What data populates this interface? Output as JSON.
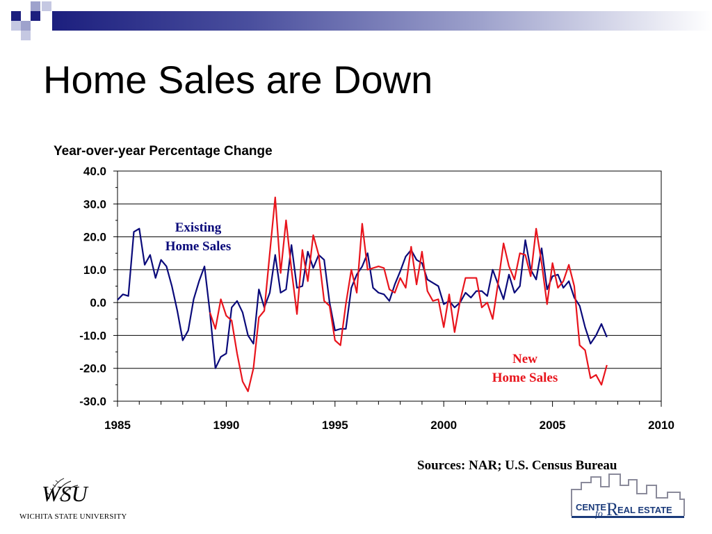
{
  "slide": {
    "title": "Home Sales are Down",
    "sources": "Sources:  NAR; U.S. Census Bureau"
  },
  "colors": {
    "deco_dark": "#1c1f7e",
    "deco_light": "#9ea2cc",
    "existing_series": "#0a0a7a",
    "new_series": "#e8141c",
    "gridline": "#000000"
  },
  "logos": {
    "wsu": {
      "mark": "WSU",
      "name": "WICHITA STATE UNIVERSITY"
    },
    "cre": {
      "word1": "CENTE",
      "word2": "fo",
      "word3": "R",
      "word4": "EAL ESTATE"
    }
  },
  "chart_data": {
    "type": "line",
    "title": "Year-over-year Percentage Change",
    "xlabel": "",
    "ylabel": "",
    "xlim": [
      1985,
      2010
    ],
    "ylim": [
      -30,
      40
    ],
    "x_ticks": [
      "1985",
      "1990",
      "1995",
      "2000",
      "2005",
      "2010"
    ],
    "y_ticks": [
      "40.0",
      "30.0",
      "20.0",
      "10.0",
      "0.0",
      "-10.0",
      "-20.0",
      "-30.0"
    ],
    "grid": "horizontal",
    "annotations": [
      {
        "series": "Existing",
        "lines": [
          "Existing",
          "Home Sales"
        ]
      },
      {
        "series": "New",
        "lines": [
          "New",
          "Home Sales"
        ]
      }
    ],
    "series": [
      {
        "name": "Existing Home Sales",
        "color": "#0a0a7a",
        "points": [
          [
            1985.0,
            0.8
          ],
          [
            1985.25,
            2.5
          ],
          [
            1985.5,
            2.0
          ],
          [
            1985.75,
            21.5
          ],
          [
            1986.0,
            22.5
          ],
          [
            1986.25,
            11.5
          ],
          [
            1986.5,
            14.5
          ],
          [
            1986.75,
            7.5
          ],
          [
            1987.0,
            13.0
          ],
          [
            1987.25,
            11.0
          ],
          [
            1987.5,
            5.0
          ],
          [
            1987.75,
            -2.5
          ],
          [
            1988.0,
            -11.5
          ],
          [
            1988.25,
            -8.5
          ],
          [
            1988.5,
            1.0
          ],
          [
            1988.75,
            6.5
          ],
          [
            1989.0,
            11.0
          ],
          [
            1989.25,
            -3.0
          ],
          [
            1989.5,
            -20.0
          ],
          [
            1989.75,
            -16.5
          ],
          [
            1990.0,
            -15.5
          ],
          [
            1990.25,
            -1.5
          ],
          [
            1990.5,
            0.5
          ],
          [
            1990.75,
            -3.0
          ],
          [
            1991.0,
            -10.0
          ],
          [
            1991.25,
            -12.5
          ],
          [
            1991.5,
            4.0
          ],
          [
            1991.75,
            -1.5
          ],
          [
            1992.0,
            3.0
          ],
          [
            1992.25,
            14.5
          ],
          [
            1992.5,
            3.0
          ],
          [
            1992.75,
            4.0
          ],
          [
            1993.0,
            17.5
          ],
          [
            1993.25,
            4.5
          ],
          [
            1993.5,
            5.0
          ],
          [
            1993.75,
            15.5
          ],
          [
            1994.0,
            10.5
          ],
          [
            1994.25,
            14.5
          ],
          [
            1994.5,
            13.0
          ],
          [
            1994.75,
            0.0
          ],
          [
            1995.0,
            -8.5
          ],
          [
            1995.25,
            -8.0
          ],
          [
            1995.5,
            -8.0
          ],
          [
            1995.75,
            4.5
          ],
          [
            1996.0,
            8.5
          ],
          [
            1996.25,
            11.0
          ],
          [
            1996.5,
            15.0
          ],
          [
            1996.75,
            4.5
          ],
          [
            1997.0,
            3.0
          ],
          [
            1997.25,
            2.5
          ],
          [
            1997.5,
            0.5
          ],
          [
            1997.75,
            5.5
          ],
          [
            1998.0,
            9.5
          ],
          [
            1998.25,
            14.0
          ],
          [
            1998.5,
            16.0
          ],
          [
            1998.75,
            13.0
          ],
          [
            1999.0,
            12.0
          ],
          [
            1999.25,
            7.0
          ],
          [
            1999.5,
            6.0
          ],
          [
            1999.75,
            5.0
          ],
          [
            2000.0,
            -0.5
          ],
          [
            2000.25,
            0.5
          ],
          [
            2000.5,
            -1.5
          ],
          [
            2000.75,
            0.0
          ],
          [
            2001.0,
            3.0
          ],
          [
            2001.25,
            1.5
          ],
          [
            2001.5,
            3.5
          ],
          [
            2001.75,
            3.5
          ],
          [
            2002.0,
            2.0
          ],
          [
            2002.25,
            10.0
          ],
          [
            2002.5,
            5.5
          ],
          [
            2002.75,
            1.0
          ],
          [
            2003.0,
            8.5
          ],
          [
            2003.25,
            3.0
          ],
          [
            2003.5,
            5.0
          ],
          [
            2003.75,
            19.0
          ],
          [
            2004.0,
            10.0
          ],
          [
            2004.25,
            7.0
          ],
          [
            2004.5,
            16.5
          ],
          [
            2004.75,
            4.0
          ],
          [
            2005.0,
            8.0
          ],
          [
            2005.25,
            8.5
          ],
          [
            2005.5,
            4.5
          ],
          [
            2005.75,
            6.5
          ],
          [
            2006.0,
            1.5
          ],
          [
            2006.25,
            -1.0
          ],
          [
            2006.5,
            -7.5
          ],
          [
            2006.75,
            -12.5
          ],
          [
            2007.0,
            -10.0
          ],
          [
            2007.25,
            -6.5
          ],
          [
            2007.5,
            -10.5
          ]
        ]
      },
      {
        "name": "New Home Sales",
        "color": "#e8141c",
        "points": [
          [
            1989.25,
            -3.0
          ],
          [
            1989.5,
            -8.0
          ],
          [
            1989.75,
            1.0
          ],
          [
            1990.0,
            -4.0
          ],
          [
            1990.25,
            -5.5
          ],
          [
            1990.5,
            -15.5
          ],
          [
            1990.75,
            -24.0
          ],
          [
            1991.0,
            -27.0
          ],
          [
            1991.25,
            -20.0
          ],
          [
            1991.5,
            -4.5
          ],
          [
            1991.75,
            -2.5
          ],
          [
            1992.0,
            15.0
          ],
          [
            1992.25,
            32.0
          ],
          [
            1992.5,
            9.0
          ],
          [
            1992.75,
            25.0
          ],
          [
            1993.0,
            10.0
          ],
          [
            1993.25,
            -3.5
          ],
          [
            1993.5,
            16.0
          ],
          [
            1993.75,
            6.5
          ],
          [
            1994.0,
            20.5
          ],
          [
            1994.25,
            14.5
          ],
          [
            1994.5,
            0.5
          ],
          [
            1994.75,
            -1.0
          ],
          [
            1995.0,
            -11.5
          ],
          [
            1995.25,
            -13.0
          ],
          [
            1995.5,
            -0.5
          ],
          [
            1995.75,
            10.0
          ],
          [
            1996.0,
            3.0
          ],
          [
            1996.25,
            24.0
          ],
          [
            1996.5,
            10.0
          ],
          [
            1996.75,
            10.5
          ],
          [
            1997.0,
            11.0
          ],
          [
            1997.25,
            10.5
          ],
          [
            1997.5,
            4.0
          ],
          [
            1997.75,
            3.0
          ],
          [
            1998.0,
            7.5
          ],
          [
            1998.25,
            4.5
          ],
          [
            1998.5,
            17.0
          ],
          [
            1998.75,
            5.5
          ],
          [
            1999.0,
            15.5
          ],
          [
            1999.25,
            3.5
          ],
          [
            1999.5,
            0.5
          ],
          [
            1999.75,
            1.0
          ],
          [
            2000.0,
            -7.5
          ],
          [
            2000.25,
            2.5
          ],
          [
            2000.5,
            -9.0
          ],
          [
            2000.75,
            0.5
          ],
          [
            2001.0,
            7.5
          ],
          [
            2001.25,
            7.5
          ],
          [
            2001.5,
            7.5
          ],
          [
            2001.75,
            -1.5
          ],
          [
            2002.0,
            0.0
          ],
          [
            2002.25,
            -5.0
          ],
          [
            2002.5,
            6.0
          ],
          [
            2002.75,
            18.0
          ],
          [
            2003.0,
            11.0
          ],
          [
            2003.25,
            7.0
          ],
          [
            2003.5,
            15.0
          ],
          [
            2003.75,
            14.5
          ],
          [
            2004.0,
            8.0
          ],
          [
            2004.25,
            22.5
          ],
          [
            2004.5,
            12.0
          ],
          [
            2004.75,
            -0.5
          ],
          [
            2005.0,
            12.0
          ],
          [
            2005.25,
            4.5
          ],
          [
            2005.5,
            6.5
          ],
          [
            2005.75,
            11.5
          ],
          [
            2006.0,
            5.0
          ],
          [
            2006.25,
            -13.0
          ],
          [
            2006.5,
            -14.5
          ],
          [
            2006.75,
            -23.0
          ],
          [
            2007.0,
            -22.0
          ],
          [
            2007.25,
            -25.0
          ],
          [
            2007.5,
            -19.0
          ]
        ]
      }
    ]
  }
}
